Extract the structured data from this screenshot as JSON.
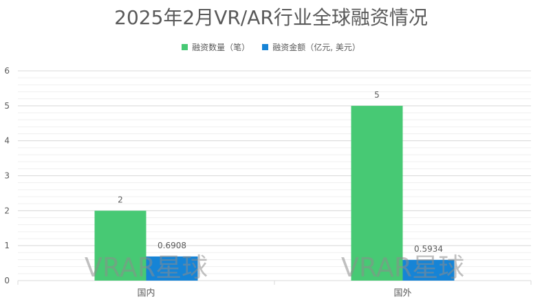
{
  "colors": {
    "count": "#47c974",
    "amount": "#1684d6",
    "grid_major": "#d9d9d9",
    "grid_minor": "#efefef",
    "text": "#595959",
    "watermark": "#8c8c8c"
  },
  "watermark_text": "VRAR星球",
  "chart_data": {
    "type": "bar",
    "title": "2025年2月VR/AR行业全球融资情况",
    "categories": [
      "国内",
      "国外"
    ],
    "series": [
      {
        "name": "融资数量（笔）",
        "values": [
          2,
          5
        ],
        "labels": [
          "2",
          "5"
        ]
      },
      {
        "name": "融资金额（亿元, 美元）",
        "values": [
          0.6908,
          0.5934
        ],
        "labels": [
          "0.6908",
          "0.5934"
        ]
      }
    ],
    "ylim": [
      0,
      6
    ],
    "yticks": [
      "0",
      "1",
      "2",
      "3",
      "4",
      "5",
      "6"
    ],
    "grid": true,
    "legend": "top-center"
  }
}
